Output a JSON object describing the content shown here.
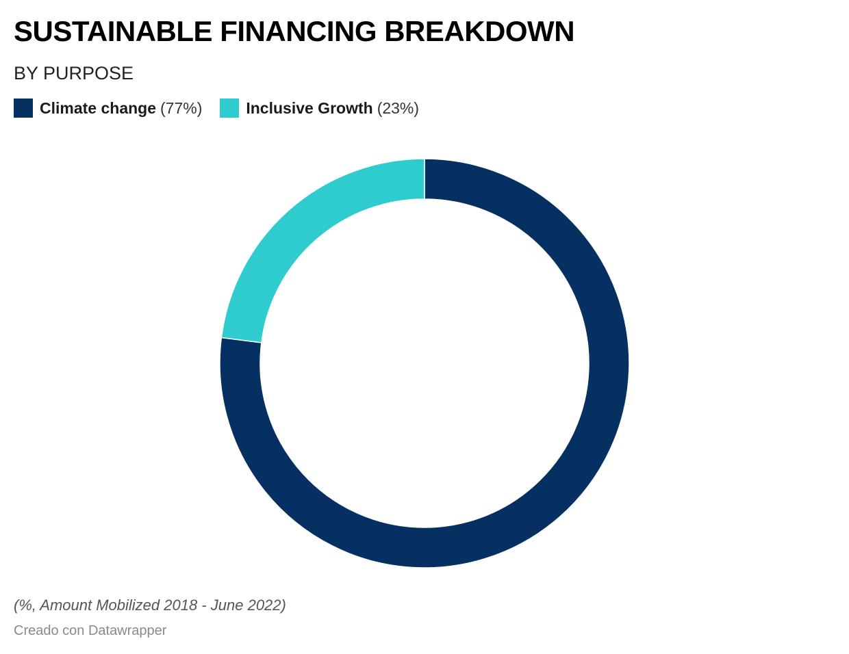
{
  "chart_data": {
    "type": "pie",
    "variant": "donut",
    "title": "SUSTAINABLE FINANCING BREAKDOWN",
    "subtitle": "BY PURPOSE",
    "categories": [
      "Climate change",
      "Inclusive Growth"
    ],
    "values": [
      77,
      23
    ],
    "legend": [
      {
        "label": "Climate change",
        "value_text": "(77%)",
        "color": "#053061"
      },
      {
        "label": "Inclusive Growth",
        "value_text": "(23%)",
        "color": "#2ecccf"
      }
    ],
    "legend_position": "top-left",
    "note": "(%, Amount Mobilized 2018 - June 2022)",
    "credit": "Creado con Datawrapper"
  }
}
